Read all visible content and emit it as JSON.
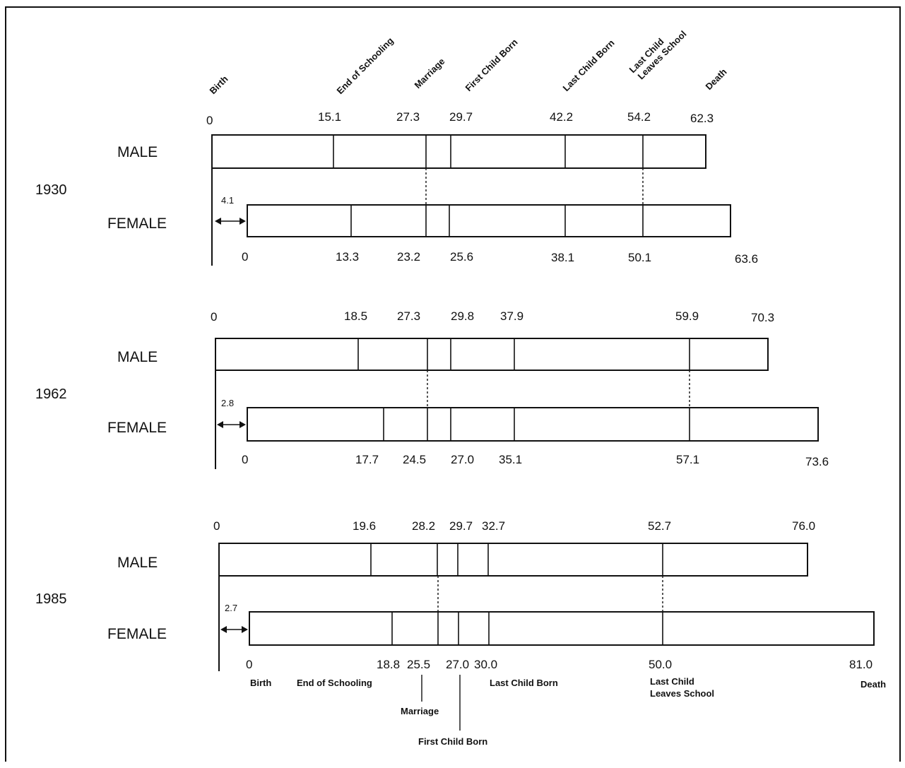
{
  "header_events": [
    "Birth",
    "End of Schooling",
    "Marriage",
    "First Child Born",
    "Last Child Born",
    "Last Child\nLeaves School",
    "Death"
  ],
  "bottom_events": {
    "birth": "Birth",
    "end_schooling": "End of Schooling",
    "marriage": "Marriage",
    "first_child": "First Child Born",
    "last_child": "Last Child Born",
    "leaves_school": "Last Child\nLeaves School",
    "death": "Death"
  },
  "sex_labels": {
    "male": "MALE",
    "female": "FEMALE"
  },
  "cohorts": [
    {
      "year": "1930",
      "gap_label": "4.1",
      "male": {
        "labels": [
          "0",
          "15.1",
          "27.3",
          "29.7",
          "42.2",
          "54.2",
          "62.3"
        ]
      },
      "female": {
        "labels": [
          "0",
          "13.3",
          "23.2",
          "25.6",
          "38.1",
          "50.1",
          "63.6"
        ]
      }
    },
    {
      "year": "1962",
      "gap_label": "2.8",
      "male": {
        "labels": [
          "0",
          "18.5",
          "27.3",
          "29.8",
          "37.9",
          "59.9",
          "70.3"
        ]
      },
      "female": {
        "labels": [
          "0",
          "17.7",
          "24.5",
          "27.0",
          "35.1",
          "57.1",
          "73.6"
        ]
      }
    },
    {
      "year": "1985",
      "gap_label": "2.7",
      "male": {
        "labels": [
          "0",
          "19.6",
          "28.2",
          "29.7",
          "32.7",
          "52.7",
          "76.0"
        ]
      },
      "female": {
        "labels": [
          "0",
          "18.8",
          "25.5",
          "27.0",
          "30.0",
          "50.0",
          "81.0"
        ]
      }
    }
  ]
}
